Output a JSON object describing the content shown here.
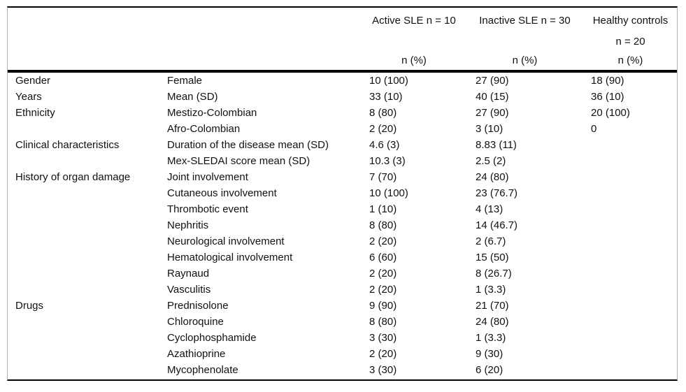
{
  "table": {
    "stub_columns": [
      "category",
      "item"
    ],
    "group_columns": [
      {
        "label": "Active SLE n = 10",
        "label_line2": "",
        "unit": "n (%)"
      },
      {
        "label": "Inactive SLE n = 30",
        "label_line2": "",
        "unit": "n (%)"
      },
      {
        "label": "Healthy controls",
        "label_line2": "n = 20",
        "unit": "n (%)"
      }
    ],
    "rows": [
      {
        "category": "Gender",
        "item": "Female",
        "active": "10 (100)",
        "inactive": "27 (90)",
        "healthy": "18 (90)"
      },
      {
        "category": "Years",
        "item": "Mean (SD)",
        "active": "33 (10)",
        "inactive": "40 (15)",
        "healthy": "36 (10)"
      },
      {
        "category": "Ethnicity",
        "item": "Mestizo-Colombian",
        "active": "8 (80)",
        "inactive": "27 (90)",
        "healthy": "20 (100)"
      },
      {
        "category": "",
        "item": "Afro-Colombian",
        "active": "2 (20)",
        "inactive": "3 (10)",
        "healthy": "0"
      },
      {
        "category": "Clinical characteristics",
        "item": "Duration of the disease mean (SD)",
        "active": "4.6 (3)",
        "inactive": "8.83 (11)",
        "healthy": ""
      },
      {
        "category": "",
        "item": "Mex-SLEDAI score mean (SD)",
        "active": "10.3 (3)",
        "inactive": "2.5 (2)",
        "healthy": ""
      },
      {
        "category": "History of organ damage",
        "item": "Joint involvement",
        "active": "7 (70)",
        "inactive": "24 (80)",
        "healthy": ""
      },
      {
        "category": "",
        "item": "Cutaneous involvement",
        "active": "10 (100)",
        "inactive": "23 (76.7)",
        "healthy": ""
      },
      {
        "category": "",
        "item": "Thrombotic event",
        "active": "1 (10)",
        "inactive": "4 (13)",
        "healthy": ""
      },
      {
        "category": "",
        "item": "Nephritis",
        "active": "8 (80)",
        "inactive": "14 (46.7)",
        "healthy": ""
      },
      {
        "category": "",
        "item": "Neurological involvement",
        "active": "2 (20)",
        "inactive": "2 (6.7)",
        "healthy": ""
      },
      {
        "category": "",
        "item": "Hematological involvement",
        "active": "6 (60)",
        "inactive": "15 (50)",
        "healthy": ""
      },
      {
        "category": "",
        "item": "Raynaud",
        "active": "2 (20)",
        "inactive": "8 (26.7)",
        "healthy": ""
      },
      {
        "category": "",
        "item": "Vasculitis",
        "active": "2 (20)",
        "inactive": "1 (3.3)",
        "healthy": ""
      },
      {
        "category": "Drugs",
        "item": "Prednisolone",
        "active": "9 (90)",
        "inactive": "21 (70)",
        "healthy": ""
      },
      {
        "category": "",
        "item": "Chloroquine",
        "active": "8 (80)",
        "inactive": "24 (80)",
        "healthy": ""
      },
      {
        "category": "",
        "item": "Cyclophosphamide",
        "active": "3 (30)",
        "inactive": "1 (3.3)",
        "healthy": ""
      },
      {
        "category": "",
        "item": "Azathioprine",
        "active": "2 (20)",
        "inactive": "9 (30)",
        "healthy": ""
      },
      {
        "category": "",
        "item": "Mycophenolate",
        "active": "3 (30)",
        "inactive": "6 (20)",
        "healthy": ""
      }
    ],
    "colors": {
      "rule": "#000000",
      "side_border": "#b0b0b0",
      "text": "#111111",
      "background": "#ffffff"
    }
  }
}
